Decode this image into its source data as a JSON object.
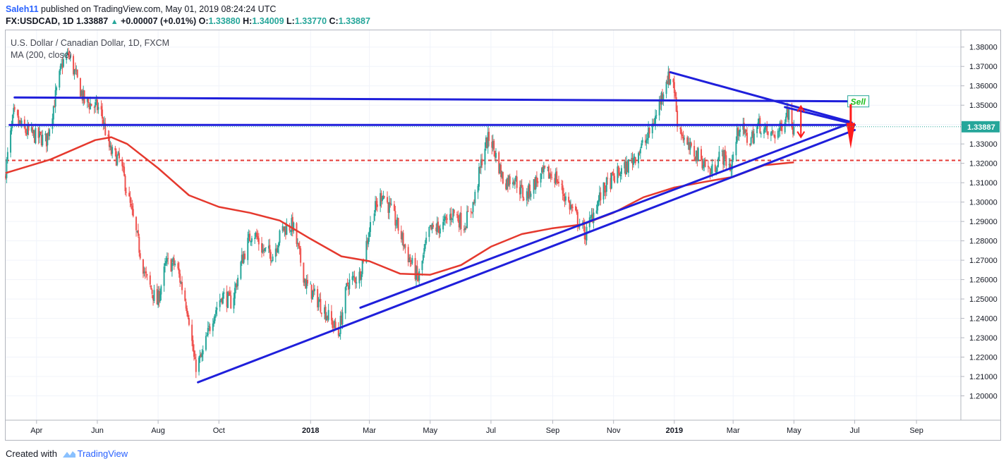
{
  "header": {
    "user": "Saleh11",
    "published": " published on TradingView.com, May 01, 2019 08:24:24 UTC",
    "ticker_line_prefix": "FX:USDCAD, 1D",
    "last_price": "1.33887",
    "change": "+0.00007 (+0.01%)",
    "open_label": "O:",
    "open": "1.33880",
    "high_label": "H:",
    "high": "1.34009",
    "low_label": "L:",
    "low": "1.33770",
    "close_label": "C:",
    "close": "1.33887"
  },
  "legend": {
    "symbol": "U.S. Dollar / Canadian Dollar, 1D, FXCM",
    "indicator": "MA (200, close)"
  },
  "footer": {
    "created_with": "Created with",
    "brand": "TradingView"
  },
  "colors": {
    "up": "#26a69a",
    "down": "#ef5350",
    "ma": "#e5392e",
    "trend": "#1f1fdb",
    "support_dash": "#e53935",
    "price_line": "#26a69a",
    "arrow": "#ff1c1c"
  },
  "chart_data": {
    "type": "candlestick",
    "title": "U.S. Dollar / Canadian Dollar, 1D, FXCM",
    "ylim": [
      1.19,
      1.385
    ],
    "y_ticks": [
      "1.38000",
      "1.37000",
      "1.36000",
      "1.35000",
      "1.34000",
      "1.33000",
      "1.32000",
      "1.31000",
      "1.30000",
      "1.29000",
      "1.28000",
      "1.27000",
      "1.26000",
      "1.25000",
      "1.24000",
      "1.23000",
      "1.22000",
      "1.21000",
      "1.20000"
    ],
    "x_range": [
      "2017-03-01",
      "2019-10-01"
    ],
    "x_ticks": [
      {
        "date": "2017-04-01",
        "label": "Apr",
        "bold": false
      },
      {
        "date": "2017-06-01",
        "label": "Jun",
        "bold": false
      },
      {
        "date": "2017-08-01",
        "label": "Aug",
        "bold": false
      },
      {
        "date": "2017-10-01",
        "label": "Oct",
        "bold": false
      },
      {
        "date": "2018-01-01",
        "label": "2018",
        "bold": true
      },
      {
        "date": "2018-03-01",
        "label": "Mar",
        "bold": false
      },
      {
        "date": "2018-05-01",
        "label": "May",
        "bold": false
      },
      {
        "date": "2018-07-01",
        "label": "Jul",
        "bold": false
      },
      {
        "date": "2018-09-01",
        "label": "Sep",
        "bold": false
      },
      {
        "date": "2018-11-01",
        "label": "Nov",
        "bold": false
      },
      {
        "date": "2019-01-01",
        "label": "2019",
        "bold": true
      },
      {
        "date": "2019-03-01",
        "label": "Mar",
        "bold": false
      },
      {
        "date": "2019-05-01",
        "label": "May",
        "bold": false
      },
      {
        "date": "2019-07-01",
        "label": "Jul",
        "bold": false
      },
      {
        "date": "2019-09-01",
        "label": "Sep",
        "bold": false
      }
    ],
    "price_anchors": [
      [
        "2017-03-01",
        1.313
      ],
      [
        "2017-03-10",
        1.345
      ],
      [
        "2017-03-20",
        1.337
      ],
      [
        "2017-04-01",
        1.334
      ],
      [
        "2017-04-12",
        1.332
      ],
      [
        "2017-04-28",
        1.372
      ],
      [
        "2017-05-04",
        1.376
      ],
      [
        "2017-05-20",
        1.352
      ],
      [
        "2017-06-05",
        1.348
      ],
      [
        "2017-06-15",
        1.326
      ],
      [
        "2017-06-25",
        1.321
      ],
      [
        "2017-07-05",
        1.298
      ],
      [
        "2017-07-20",
        1.262
      ],
      [
        "2017-08-01",
        1.248
      ],
      [
        "2017-08-10",
        1.268
      ],
      [
        "2017-08-20",
        1.268
      ],
      [
        "2017-09-01",
        1.244
      ],
      [
        "2017-09-08",
        1.215
      ],
      [
        "2017-09-15",
        1.22
      ],
      [
        "2017-09-25",
        1.24
      ],
      [
        "2017-10-05",
        1.252
      ],
      [
        "2017-10-15",
        1.248
      ],
      [
        "2017-10-25",
        1.27
      ],
      [
        "2017-11-05",
        1.286
      ],
      [
        "2017-11-15",
        1.275
      ],
      [
        "2017-11-25",
        1.273
      ],
      [
        "2017-12-05",
        1.286
      ],
      [
        "2017-12-15",
        1.288
      ],
      [
        "2017-12-28",
        1.258
      ],
      [
        "2018-01-15",
        1.245
      ],
      [
        "2018-01-30",
        1.232
      ],
      [
        "2018-02-08",
        1.258
      ],
      [
        "2018-02-20",
        1.262
      ],
      [
        "2018-03-05",
        1.293
      ],
      [
        "2018-03-15",
        1.305
      ],
      [
        "2018-03-30",
        1.288
      ],
      [
        "2018-04-10",
        1.272
      ],
      [
        "2018-04-20",
        1.26
      ],
      [
        "2018-05-01",
        1.285
      ],
      [
        "2018-05-15",
        1.288
      ],
      [
        "2018-05-25",
        1.295
      ],
      [
        "2018-06-05",
        1.288
      ],
      [
        "2018-06-15",
        1.3
      ],
      [
        "2018-06-25",
        1.328
      ],
      [
        "2018-07-01",
        1.334
      ],
      [
        "2018-07-15",
        1.31
      ],
      [
        "2018-07-25",
        1.313
      ],
      [
        "2018-08-05",
        1.302
      ],
      [
        "2018-08-15",
        1.31
      ],
      [
        "2018-08-25",
        1.315
      ],
      [
        "2018-09-05",
        1.313
      ],
      [
        "2018-09-15",
        1.302
      ],
      [
        "2018-09-28",
        1.29
      ],
      [
        "2018-10-05",
        1.283
      ],
      [
        "2018-10-15",
        1.298
      ],
      [
        "2018-10-25",
        1.308
      ],
      [
        "2018-11-05",
        1.314
      ],
      [
        "2018-11-15",
        1.318
      ],
      [
        "2018-11-25",
        1.325
      ],
      [
        "2018-12-05",
        1.332
      ],
      [
        "2018-12-15",
        1.345
      ],
      [
        "2018-12-25",
        1.364
      ],
      [
        "2019-01-01",
        1.363
      ],
      [
        "2019-01-05",
        1.342
      ],
      [
        "2019-01-15",
        1.328
      ],
      [
        "2019-01-28",
        1.323
      ],
      [
        "2019-02-08",
        1.315
      ],
      [
        "2019-02-18",
        1.325
      ],
      [
        "2019-02-28",
        1.318
      ],
      [
        "2019-03-08",
        1.34
      ],
      [
        "2019-03-18",
        1.331
      ],
      [
        "2019-03-28",
        1.34
      ],
      [
        "2019-04-08",
        1.334
      ],
      [
        "2019-04-18",
        1.337
      ],
      [
        "2019-04-25",
        1.348
      ],
      [
        "2019-05-01",
        1.33887
      ]
    ],
    "ma200_anchors": [
      [
        "2017-03-01",
        1.315
      ],
      [
        "2017-04-15",
        1.322
      ],
      [
        "2017-05-30",
        1.332
      ],
      [
        "2017-06-15",
        1.3335
      ],
      [
        "2017-07-01",
        1.33
      ],
      [
        "2017-08-01",
        1.3175
      ],
      [
        "2017-09-01",
        1.3035
      ],
      [
        "2017-10-01",
        1.2975
      ],
      [
        "2017-11-01",
        1.2945
      ],
      [
        "2017-12-01",
        1.2905
      ],
      [
        "2018-01-01",
        1.281
      ],
      [
        "2018-02-01",
        1.272
      ],
      [
        "2018-03-01",
        1.2695
      ],
      [
        "2018-04-01",
        1.263
      ],
      [
        "2018-05-01",
        1.2625
      ],
      [
        "2018-06-01",
        1.2675
      ],
      [
        "2018-07-01",
        1.277
      ],
      [
        "2018-08-01",
        1.2835
      ],
      [
        "2018-09-01",
        1.2865
      ],
      [
        "2018-10-01",
        1.2885
      ],
      [
        "2018-11-01",
        1.2945
      ],
      [
        "2018-12-01",
        1.3025
      ],
      [
        "2019-01-01",
        1.3075
      ],
      [
        "2019-02-01",
        1.3105
      ],
      [
        "2019-03-01",
        1.313
      ],
      [
        "2019-04-01",
        1.319
      ],
      [
        "2019-05-01",
        1.3205
      ]
    ],
    "lines": [
      {
        "name": "resistance-line",
        "from": [
          "2017-03-10",
          1.354
        ],
        "to": [
          "2019-07-01",
          1.352
        ]
      },
      {
        "name": "pivot-line",
        "from": [
          "2017-03-05",
          1.3398
        ],
        "to": [
          "2019-07-01",
          1.3398
        ]
      },
      {
        "name": "descending-line",
        "from": [
          "2018-12-28",
          1.367
        ],
        "to": [
          "2019-06-26",
          1.3415
        ]
      },
      {
        "name": "inner-apex-line",
        "from": [
          "2019-04-22",
          1.349
        ],
        "to": [
          "2019-06-26",
          1.3408
        ]
      },
      {
        "name": "rising-trend-line-upper",
        "from": [
          "2018-02-20",
          1.2455
        ],
        "to": [
          "2019-06-28",
          1.341
        ]
      },
      {
        "name": "rising-trend-line-lower",
        "from": [
          "2017-09-10",
          1.207
        ],
        "to": [
          "2019-07-01",
          1.3372
        ]
      }
    ],
    "dashed_support": 1.3215,
    "annotations": [
      {
        "text": "Sell",
        "date": "2019-06-24",
        "price": 1.352
      }
    ]
  }
}
